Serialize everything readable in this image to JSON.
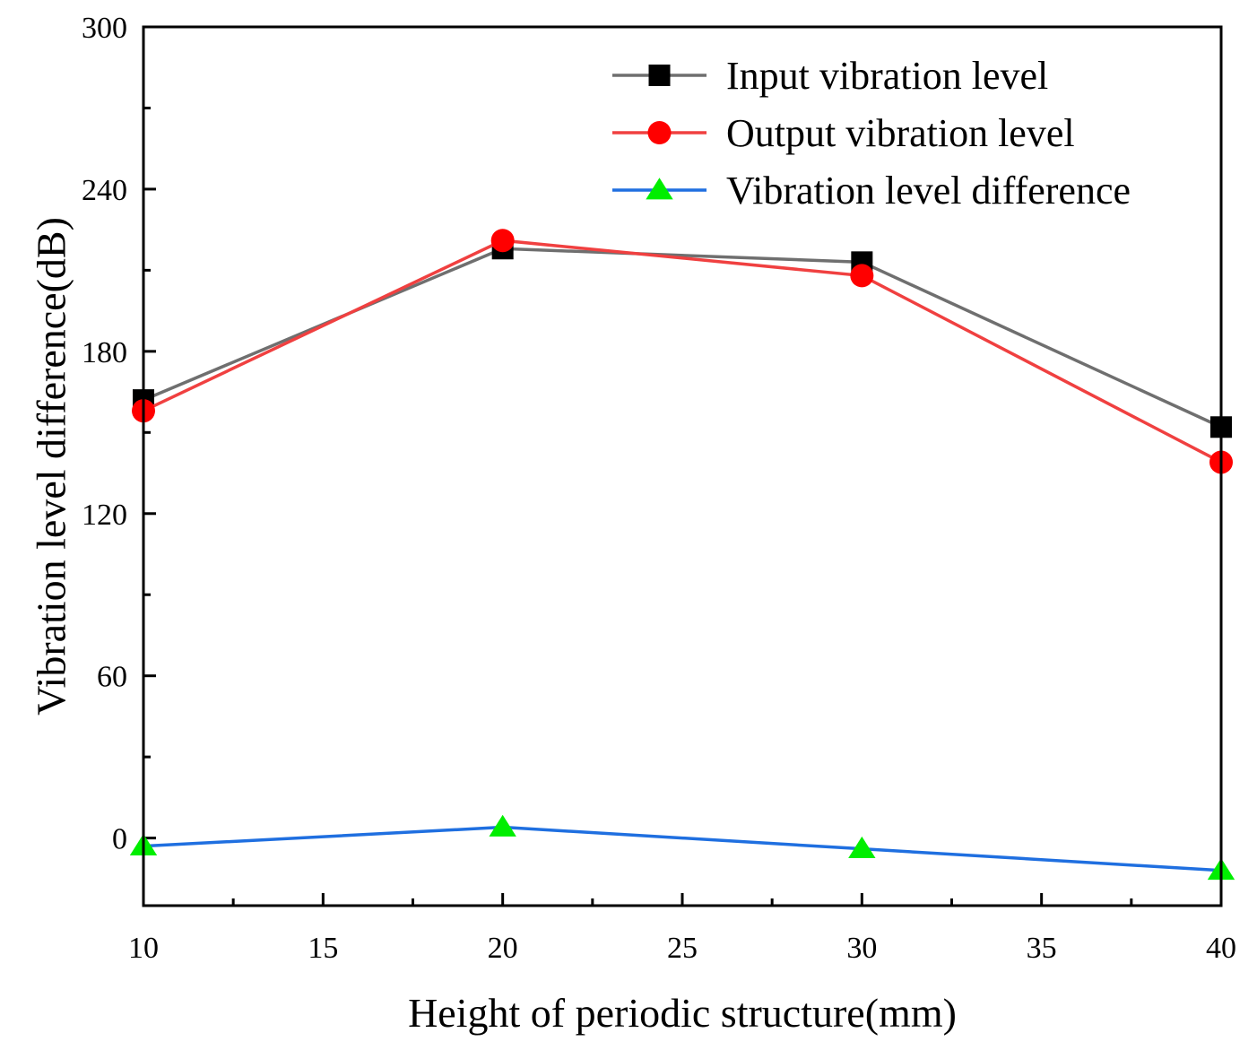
{
  "chart_data": {
    "type": "line",
    "title": "",
    "xlabel": "Height of periodic structure(mm)",
    "ylabel": "Vibration level difference(dB)",
    "xlim": [
      10,
      40
    ],
    "ylim": [
      -25,
      300
    ],
    "xticks": [
      10,
      15,
      20,
      25,
      30,
      35,
      40
    ],
    "yticks": [
      0,
      60,
      120,
      180,
      240,
      300
    ],
    "x": [
      10,
      20,
      30,
      40
    ],
    "series": [
      {
        "name": "Input vibration level",
        "color": "#6f6f6f",
        "marker": "square",
        "marker_color": "#000000",
        "values": [
          162,
          218,
          213,
          152
        ]
      },
      {
        "name": "Output vibration level",
        "color": "#f04040",
        "marker": "circle",
        "marker_color": "#ff0000",
        "values": [
          158,
          221,
          208,
          139
        ]
      },
      {
        "name": "Vibration level difference",
        "color": "#1f6fe0",
        "marker": "triangle",
        "marker_color": "#00ee00",
        "values": [
          -3,
          4,
          -4,
          -12
        ]
      }
    ],
    "legend_position": "top-right",
    "grid": false
  }
}
